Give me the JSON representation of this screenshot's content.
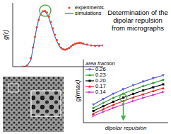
{
  "chart_data": [
    {
      "type": "line",
      "annotation": "Determination of the dipolar repulsion from micrographs",
      "ylabel": "g(r)",
      "x": [
        1.0,
        1.2,
        1.4,
        1.5,
        1.6,
        1.7,
        1.8,
        1.9,
        2.0,
        2.1,
        2.2,
        2.3,
        2.4,
        2.5,
        2.6,
        2.7,
        2.8,
        2.9,
        3.0,
        3.1,
        3.2,
        3.3,
        3.4,
        3.5,
        3.6,
        3.7,
        3.8,
        3.9,
        4.0,
        4.2,
        4.4,
        4.6,
        4.8,
        5.0
      ],
      "series": [
        {
          "name": "experiments",
          "color": "#e8452c",
          "marker": "circle",
          "line_style": "none",
          "values": [
            0,
            0.05,
            0.4,
            0.9,
            1.4,
            1.85,
            2.2,
            2.45,
            2.6,
            2.62,
            2.55,
            2.35,
            2.1,
            1.8,
            1.5,
            1.25,
            1.05,
            0.9,
            0.82,
            0.8,
            0.82,
            0.88,
            0.95,
            1.02,
            1.07,
            1.1,
            1.12,
            1.11,
            1.09,
            1.04,
            1.0,
            0.98,
            0.98,
            1.0
          ]
        },
        {
          "name": "simulations",
          "color": "#3f5fc9",
          "marker": "none",
          "line_style": "solid",
          "values": [
            0,
            0.02,
            0.3,
            0.8,
            1.35,
            1.85,
            2.25,
            2.5,
            2.62,
            2.6,
            2.48,
            2.28,
            2.0,
            1.7,
            1.42,
            1.18,
            1.0,
            0.87,
            0.8,
            0.79,
            0.82,
            0.88,
            0.95,
            1.02,
            1.07,
            1.1,
            1.11,
            1.1,
            1.08,
            1.03,
            1.0,
            0.98,
            0.99,
            1.0
          ]
        }
      ],
      "xlim": [
        0.5,
        5
      ],
      "ylim": [
        0,
        3
      ],
      "tick_labels": false,
      "legend": "upper right"
    },
    {
      "type": "line",
      "xlabel": "dipolar repulsion",
      "ylabel": "g(rmax)",
      "legend_title": "area fraction",
      "x": [
        1,
        2,
        3,
        4,
        5,
        6,
        7,
        8
      ],
      "series": [
        {
          "name": "0.26",
          "color": "#5a5ad8",
          "marker": "triangle-down",
          "line_style": "solid",
          "values": [
            2.0,
            2.25,
            2.48,
            2.68,
            2.86,
            3.02,
            3.17,
            3.3
          ]
        },
        {
          "name": "0.23",
          "color": "#2e9e2e",
          "marker": "circle",
          "line_style": "solid",
          "values": [
            1.85,
            2.08,
            2.3,
            2.49,
            2.66,
            2.82,
            2.96,
            3.1
          ]
        },
        {
          "name": "0.20",
          "color": "#000000",
          "marker": "square",
          "line_style": "solid",
          "values": [
            1.72,
            1.93,
            2.13,
            2.31,
            2.48,
            2.63,
            2.77,
            2.9
          ]
        },
        {
          "name": "0.17",
          "color": "#e0221c",
          "marker": "triangle-up",
          "line_style": "solid",
          "values": [
            1.6,
            1.8,
            1.99,
            2.16,
            2.32,
            2.46,
            2.6,
            2.73
          ]
        },
        {
          "name": "0.14",
          "color": "#d633d6",
          "marker": "triangle-right",
          "line_style": "solid",
          "values": [
            1.5,
            1.68,
            1.85,
            2.01,
            2.16,
            2.3,
            2.43,
            2.56
          ]
        }
      ],
      "xlim": [
        0,
        8.5
      ],
      "ylim": [
        1.2,
        4.0
      ],
      "tick_labels": false,
      "legend": "upper left"
    }
  ]
}
